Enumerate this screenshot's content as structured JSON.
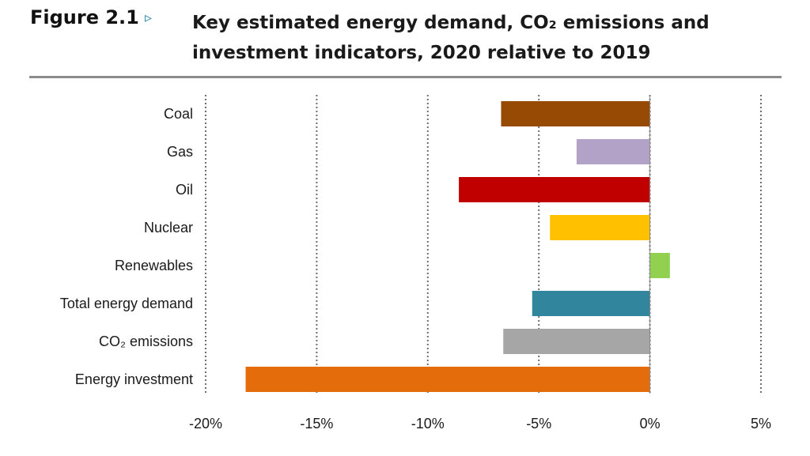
{
  "figure": {
    "label": "Figure 2.1",
    "arrow": "▹",
    "title_line1": "Key estimated energy demand, CO₂ emissions and",
    "title_line2": "investment indicators, 2020 relative to 2019"
  },
  "chart_data": {
    "type": "bar",
    "orientation": "horizontal",
    "categories": [
      "Coal",
      "Gas",
      "Oil",
      "Nuclear",
      "Renewables",
      "Total energy demand",
      "CO₂ emissions",
      "Energy investment"
    ],
    "values": [
      -6.7,
      -3.3,
      -8.6,
      -4.5,
      0.9,
      -5.3,
      -6.6,
      -18.2
    ],
    "colors": [
      "#964a04",
      "#b3a2c8",
      "#c00000",
      "#ffc000",
      "#92d050",
      "#31859c",
      "#a6a6a6",
      "#e46c0a"
    ],
    "xlim": [
      -20,
      5
    ],
    "xticks": [
      -20,
      -15,
      -10,
      -5,
      0,
      5
    ],
    "xtick_labels": [
      "-20%",
      "-15%",
      "-10%",
      "-5%",
      "0%",
      "5%"
    ],
    "grid": "vertical dotted",
    "xlabel": "",
    "ylabel": ""
  }
}
